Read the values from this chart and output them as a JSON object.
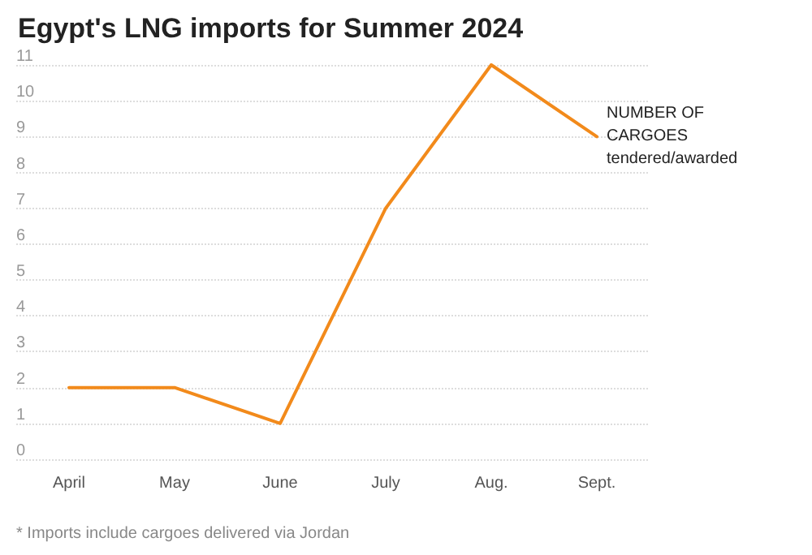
{
  "chart_data": {
    "type": "line",
    "title": "Egypt's LNG imports for Summer 2024",
    "categories": [
      "April",
      "May",
      "June",
      "July",
      "Aug.",
      "Sept."
    ],
    "series": [
      {
        "name": "NUMBER OF CARGOES tendered/awarded",
        "color": "#f28a1b",
        "values": [
          2,
          2,
          1,
          7,
          11,
          9
        ]
      }
    ],
    "ylim": [
      0,
      11
    ],
    "yticks": [
      0,
      1,
      2,
      3,
      4,
      5,
      6,
      7,
      8,
      9,
      10,
      11
    ],
    "grid": "y",
    "legend": false,
    "marker": "none",
    "line_style": "solid",
    "annotations": [
      "* Imports include cargoes delivered via Jordan"
    ]
  }
}
